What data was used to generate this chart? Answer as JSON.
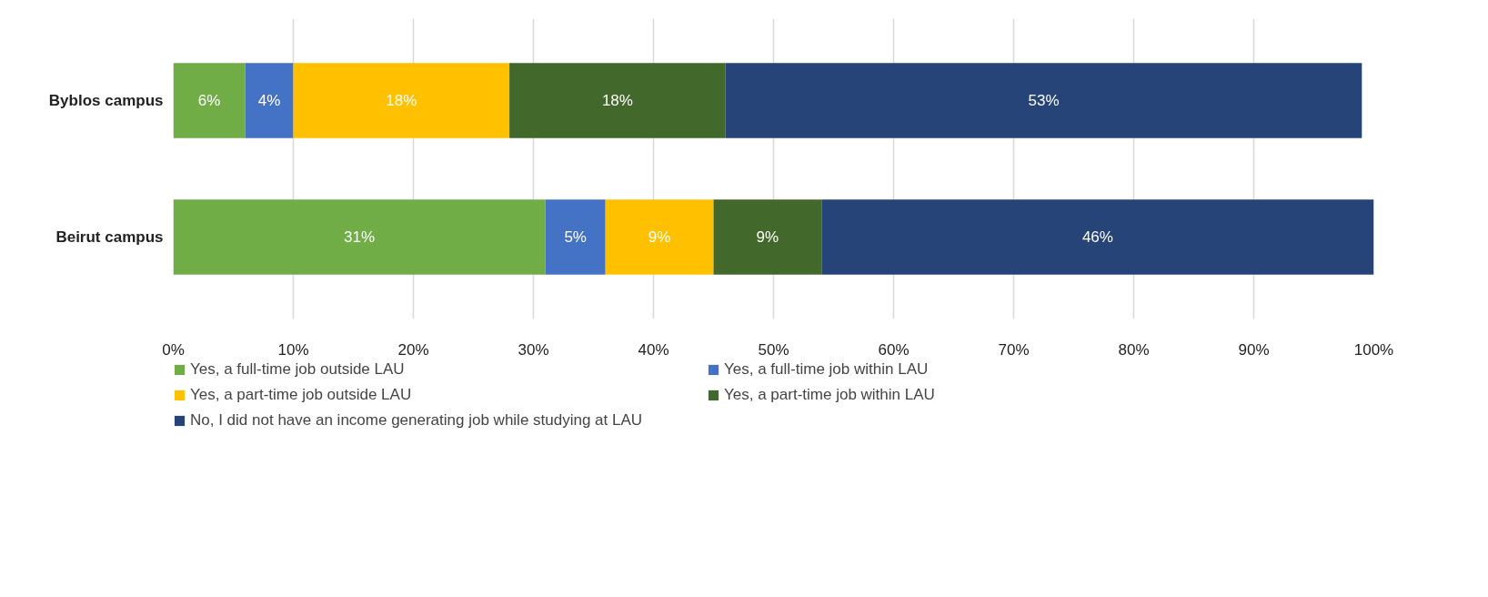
{
  "chart_data": {
    "type": "bar",
    "orientation": "horizontal",
    "stacked": true,
    "categories": [
      "Byblos campus",
      "Beirut campus"
    ],
    "series": [
      {
        "name": "Yes, a full-time job outside LAU",
        "color": "#70ad47",
        "values": [
          6,
          31
        ]
      },
      {
        "name": "Yes, a full-time job within LAU",
        "color": "#4472c4",
        "values": [
          4,
          5
        ]
      },
      {
        "name": "Yes, a part-time job outside LAU",
        "color": "#ffc000",
        "values": [
          18,
          9
        ]
      },
      {
        "name": "Yes, a part-time job within LAU",
        "color": "#43682b",
        "values": [
          18,
          9
        ]
      },
      {
        "name": "No, I did not have an income generating job while studying at LAU",
        "color": "#264478",
        "values": [
          53,
          46
        ]
      }
    ],
    "xlim": [
      0,
      100
    ],
    "xticks": [
      {
        "value": 0,
        "label": "0%"
      },
      {
        "value": 10,
        "label": "10%"
      },
      {
        "value": 20,
        "label": "20%"
      },
      {
        "value": 30,
        "label": "30%"
      },
      {
        "value": 40,
        "label": "40%"
      },
      {
        "value": 50,
        "label": "50%"
      },
      {
        "value": 60,
        "label": "60%"
      },
      {
        "value": 70,
        "label": "70%"
      },
      {
        "value": 80,
        "label": "80%"
      },
      {
        "value": 90,
        "label": "90%"
      },
      {
        "value": 100,
        "label": "100%"
      }
    ],
    "value_labels": [
      [
        "6%",
        "31%"
      ],
      [
        "4%",
        "5%"
      ],
      [
        "18%",
        "9%"
      ],
      [
        "18%",
        "9%"
      ],
      [
        "53%",
        "46%"
      ]
    ],
    "grid": "x",
    "legend": "bottom"
  }
}
